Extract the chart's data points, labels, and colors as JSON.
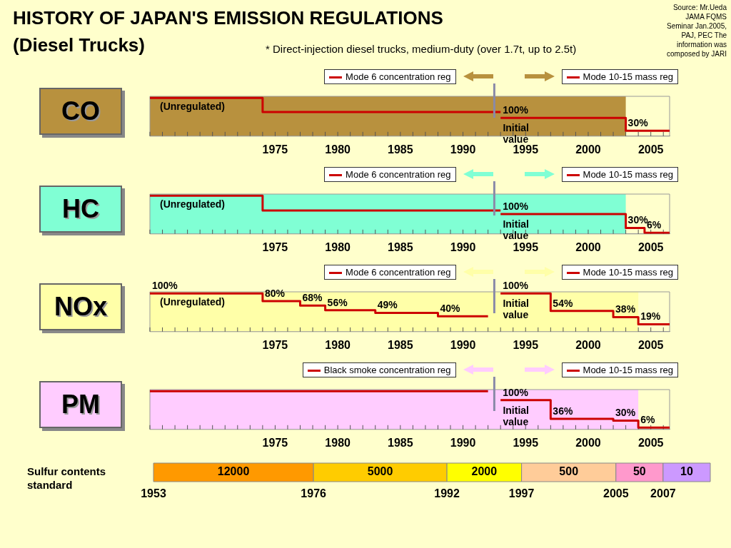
{
  "chart_data": [
    {
      "type": "other",
      "title": "HISTORY OF JAPAN'S EMISSION REGULATIONS (Diesel Trucks)",
      "subtitle": "* Direct-injection diesel trucks, medium-duty (over 1.7t, up to 2.5t)",
      "annotations": [
        "Source: Mr.Ueda JAMA FQMS Seminar Jan.2005, PAJ, PEC The information was composed by JARI"
      ]
    },
    {
      "type": "step",
      "title": "CO",
      "xlim": [
        1965,
        2006.5
      ],
      "xticks": [
        1975,
        1980,
        1985,
        1990,
        1995,
        2000,
        2005
      ],
      "tick_labels": "x",
      "legend": "top",
      "series": [
        {
          "name": "Mode 6 concentration reg",
          "color": "#cc0000",
          "x": [
            1965,
            1974,
            1993
          ],
          "values": [
            211,
            133,
            133
          ]
        },
        {
          "name": "Mode 10-15 mass reg",
          "color": "#cc0000",
          "x": [
            1993,
            2003,
            2006.5
          ],
          "values": [
            100,
            30,
            30
          ],
          "value_labels": [
            "100%",
            "30%",
            null
          ]
        }
      ],
      "bands": [
        {
          "axis": "x",
          "from": 1965,
          "to": 2003,
          "color": "#b8913e"
        }
      ],
      "ref_lines": [
        {
          "axis": "x",
          "value": 1992.5,
          "color": "#8a8aa8"
        }
      ],
      "annotations": [
        "(Unregulated)",
        "Initial value"
      ]
    },
    {
      "type": "step",
      "title": "HC",
      "xlim": [
        1965,
        2006.5
      ],
      "xticks": [
        1975,
        1980,
        1985,
        1990,
        1995,
        2000,
        2005
      ],
      "tick_labels": "x",
      "legend": "top",
      "series": [
        {
          "name": "Mode 6 concentration reg",
          "color": "#cc0000",
          "x": [
            1965,
            1974,
            1993
          ],
          "values": [
            193,
            118,
            118
          ]
        },
        {
          "name": "Mode 10-15 mass reg",
          "color": "#cc0000",
          "x": [
            1993,
            2003,
            2004.5,
            2006.5
          ],
          "values": [
            100,
            30,
            6,
            6
          ],
          "value_labels": [
            "100%",
            "30%",
            "6%",
            null
          ]
        }
      ],
      "bands": [
        {
          "axis": "x",
          "from": 1965,
          "to": 2003,
          "color": "#80ffd4"
        }
      ],
      "ref_lines": [
        {
          "axis": "x",
          "value": 1992.5,
          "color": "#8a8aa8"
        }
      ],
      "annotations": [
        "(Unregulated)",
        "Initial value"
      ]
    },
    {
      "type": "step",
      "title": "NOx",
      "xlim": [
        1965,
        2006.5
      ],
      "xticks": [
        1975,
        1980,
        1985,
        1990,
        1995,
        2000,
        2005
      ],
      "tick_labels": "x",
      "legend": "top",
      "series": [
        {
          "name": "Mode 6 concentration reg",
          "color": "#cc0000",
          "x": [
            1965,
            1974,
            1977,
            1979,
            1983,
            1988,
            1992
          ],
          "values": [
            100,
            80,
            68,
            56,
            49,
            40,
            40
          ],
          "value_labels": [
            "100%",
            "80%",
            "68%",
            "56%",
            "49%",
            "40%",
            null
          ]
        },
        {
          "name": "Mode 10-15 mass reg",
          "color": "#cc0000",
          "x": [
            1993,
            1997,
            2002,
            2004,
            2006.5
          ],
          "values": [
            100,
            54,
            38,
            19,
            19
          ],
          "value_labels": [
            "100%",
            "54%",
            "38%",
            "19%",
            null
          ]
        }
      ],
      "bands": [
        {
          "axis": "x",
          "from": 1965,
          "to": 2004,
          "color": "#ffffa8"
        }
      ],
      "ref_lines": [
        {
          "axis": "x",
          "value": 1992.5,
          "color": "#8a8aa8"
        }
      ],
      "annotations": [
        "(Unregulated)",
        "Initial value"
      ]
    },
    {
      "type": "step",
      "title": "PM",
      "xlim": [
        1965,
        2006.5
      ],
      "xticks": [
        1975,
        1980,
        1985,
        1990,
        1995,
        2000,
        2005
      ],
      "tick_labels": "x",
      "legend": "top",
      "series": [
        {
          "name": "Black smoke concentration reg",
          "color": "#cc0000",
          "x": [
            1965,
            1992
          ],
          "values": [
            131,
            131
          ]
        },
        {
          "name": "Mode 10-15 mass reg",
          "color": "#cc0000",
          "x": [
            1993,
            1997,
            2002,
            2004,
            2006.5
          ],
          "values": [
            100,
            36,
            30,
            6,
            6
          ],
          "value_labels": [
            "100%",
            "36%",
            "30%",
            "6%",
            null
          ]
        }
      ],
      "bands": [
        {
          "axis": "x",
          "from": 1965,
          "to": 2004,
          "color": "#ffccff"
        }
      ],
      "ref_lines": [
        {
          "axis": "x",
          "value": 1992.5,
          "color": "#8a8aa8"
        }
      ],
      "annotations": [
        "Initial value"
      ]
    },
    {
      "type": "other",
      "title": "Sulfur contents standard",
      "categories": [
        "12000",
        "5000",
        "2000",
        "500",
        "50",
        "10"
      ],
      "colors": [
        "#ff9900",
        "#ffcc00",
        "#ffff00",
        "#ffcc99",
        "#ff99cc",
        "#cc99ff"
      ],
      "annotations": [
        "1953",
        "1976",
        "1992",
        "1997",
        "2005",
        "2007"
      ]
    }
  ]
}
